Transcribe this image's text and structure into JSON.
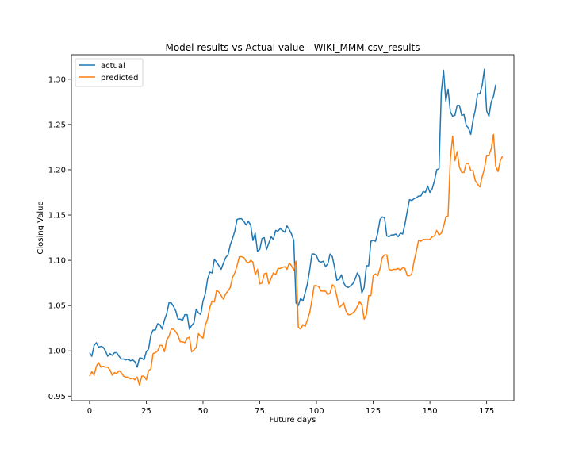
{
  "chart_data": {
    "type": "line",
    "title": "Model results vs Actual value - WIKI_MMM.csv_results",
    "xlabel": "Future days",
    "ylabel": "Closing Value",
    "xlim": [
      -8,
      187
    ],
    "ylim": [
      0.945,
      1.327
    ],
    "xticks": [
      0,
      25,
      50,
      75,
      100,
      125,
      150,
      175
    ],
    "xtick_labels": [
      "0",
      "25",
      "50",
      "75",
      "100",
      "125",
      "150",
      "175"
    ],
    "yticks": [
      0.95,
      1.0,
      1.05,
      1.1,
      1.15,
      1.2,
      1.25,
      1.3
    ],
    "ytick_labels": [
      "0.95",
      "1.00",
      "1.05",
      "1.10",
      "1.15",
      "1.20",
      "1.25",
      "1.30"
    ],
    "grid": false,
    "legend_position": "top-left",
    "series": [
      {
        "name": "actual",
        "color": "#1f77b4",
        "values": [
          0.998,
          0.994,
          1.006,
          1.009,
          1.004,
          1.005,
          1.004,
          1.0,
          0.994,
          0.997,
          0.995,
          0.998,
          0.998,
          0.994,
          0.991,
          0.991,
          0.99,
          0.991,
          0.989,
          0.99,
          0.988,
          0.982,
          0.992,
          0.992,
          0.99,
          0.999,
          1.002,
          1.017,
          1.023,
          1.023,
          1.03,
          1.029,
          1.024,
          1.034,
          1.041,
          1.053,
          1.053,
          1.049,
          1.044,
          1.035,
          1.035,
          1.034,
          1.04,
          1.04,
          1.024,
          1.028,
          1.031,
          1.046,
          1.042,
          1.04,
          1.055,
          1.063,
          1.079,
          1.087,
          1.086,
          1.101,
          1.098,
          1.094,
          1.09,
          1.097,
          1.103,
          1.106,
          1.117,
          1.124,
          1.132,
          1.145,
          1.146,
          1.146,
          1.143,
          1.139,
          1.143,
          1.139,
          1.122,
          1.13,
          1.11,
          1.112,
          1.124,
          1.125,
          1.112,
          1.119,
          1.126,
          1.123,
          1.133,
          1.132,
          1.135,
          1.133,
          1.131,
          1.138,
          1.134,
          1.129,
          1.122,
          1.053,
          1.05,
          1.058,
          1.055,
          1.064,
          1.074,
          1.089,
          1.107,
          1.107,
          1.105,
          1.099,
          1.098,
          1.099,
          1.093,
          1.096,
          1.107,
          1.104,
          1.092,
          1.078,
          1.079,
          1.084,
          1.075,
          1.071,
          1.07,
          1.072,
          1.074,
          1.079,
          1.086,
          1.082,
          1.064,
          1.07,
          1.094,
          1.094,
          1.121,
          1.122,
          1.121,
          1.13,
          1.145,
          1.148,
          1.147,
          1.127,
          1.126,
          1.128,
          1.128,
          1.129,
          1.126,
          1.13,
          1.129,
          1.14,
          1.154,
          1.167,
          1.166,
          1.168,
          1.169,
          1.171,
          1.171,
          1.176,
          1.175,
          1.182,
          1.175,
          1.179,
          1.188,
          1.2,
          1.201,
          1.285,
          1.31,
          1.276,
          1.289,
          1.264,
          1.259,
          1.26,
          1.271,
          1.271,
          1.26,
          1.261,
          1.249,
          1.246,
          1.239,
          1.255,
          1.266,
          1.284,
          1.284,
          1.293,
          1.311,
          1.265,
          1.259,
          1.275,
          1.281,
          1.294
        ]
      },
      {
        "name": "predicted",
        "color": "#ff7f0e",
        "values": [
          0.972,
          0.977,
          0.973,
          0.983,
          0.987,
          0.982,
          0.983,
          0.982,
          0.982,
          0.979,
          0.973,
          0.976,
          0.975,
          0.978,
          0.976,
          0.972,
          0.971,
          0.971,
          0.969,
          0.97,
          0.968,
          0.971,
          0.962,
          0.972,
          0.972,
          0.968,
          0.978,
          0.98,
          0.997,
          0.998,
          1.0,
          1.006,
          1.006,
          0.999,
          1.012,
          1.016,
          1.024,
          1.024,
          1.021,
          1.017,
          1.01,
          1.01,
          1.009,
          1.014,
          1.015,
          0.999,
          1.001,
          1.004,
          1.019,
          1.016,
          1.014,
          1.028,
          1.035,
          1.048,
          1.055,
          1.054,
          1.067,
          1.065,
          1.061,
          1.057,
          1.063,
          1.066,
          1.07,
          1.081,
          1.086,
          1.094,
          1.104,
          1.104,
          1.103,
          1.099,
          1.097,
          1.1,
          1.098,
          1.084,
          1.09,
          1.074,
          1.075,
          1.085,
          1.086,
          1.074,
          1.08,
          1.086,
          1.084,
          1.091,
          1.091,
          1.092,
          1.093,
          1.09,
          1.097,
          1.094,
          1.089,
          1.099,
          1.026,
          1.024,
          1.029,
          1.027,
          1.034,
          1.042,
          1.056,
          1.072,
          1.072,
          1.071,
          1.066,
          1.066,
          1.066,
          1.062,
          1.064,
          1.073,
          1.071,
          1.06,
          1.048,
          1.05,
          1.053,
          1.044,
          1.04,
          1.04,
          1.042,
          1.044,
          1.049,
          1.054,
          1.051,
          1.035,
          1.04,
          1.061,
          1.061,
          1.083,
          1.085,
          1.083,
          1.091,
          1.103,
          1.106,
          1.106,
          1.09,
          1.089,
          1.09,
          1.09,
          1.091,
          1.089,
          1.092,
          1.091,
          1.083,
          1.083,
          1.085,
          1.099,
          1.11,
          1.122,
          1.121,
          1.123,
          1.123,
          1.123,
          1.123,
          1.126,
          1.127,
          1.133,
          1.128,
          1.13,
          1.137,
          1.148,
          1.149,
          1.212,
          1.237,
          1.21,
          1.22,
          1.203,
          1.197,
          1.197,
          1.207,
          1.207,
          1.199,
          1.199,
          1.188,
          1.184,
          1.181,
          1.192,
          1.201,
          1.216,
          1.216,
          1.223,
          1.239,
          1.204,
          1.198,
          1.21,
          1.215
        ]
      }
    ]
  }
}
